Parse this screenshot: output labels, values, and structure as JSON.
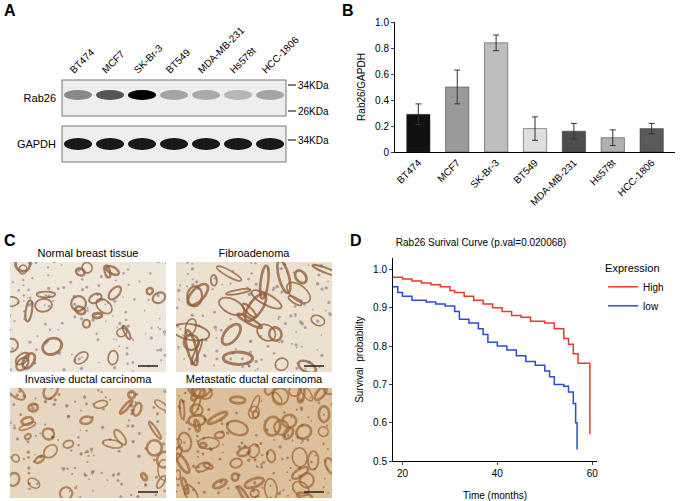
{
  "western_blot": {
    "panel": "A",
    "lanes": [
      "BT474",
      "MCF7",
      "SK-Br-3",
      "BT549",
      "MDA-MB-231",
      "Hs578t",
      "HCC-1806"
    ],
    "rows": [
      {
        "label": "Rab26",
        "markers": [
          "34KDa",
          "26KDa"
        ]
      },
      {
        "label": "GAPDH",
        "markers": [
          "34KDa"
        ]
      }
    ]
  },
  "chart_data": [
    {
      "panel": "B",
      "type": "bar",
      "categories": [
        "BT474",
        "MCF7",
        "SK-Br-3",
        "BT549",
        "MDA-MB-231",
        "Hs578t",
        "HCC-1806"
      ],
      "values": [
        0.29,
        0.5,
        0.84,
        0.18,
        0.16,
        0.11,
        0.18
      ],
      "errors": [
        0.08,
        0.13,
        0.06,
        0.09,
        0.06,
        0.06,
        0.04
      ],
      "colors": [
        "#111111",
        "#9a9a9a",
        "#bdbdbd",
        "#dedede",
        "#4d4d4d",
        "#b0b0b0",
        "#5a5a5a"
      ],
      "ylabel": "Rab26/GAPDH",
      "ylim": [
        0,
        1
      ],
      "yticks": [
        0,
        0.2,
        0.4,
        0.6,
        0.8,
        {
          "value": 1,
          "label": "1.0"
        }
      ],
      "grid": false
    },
    {
      "panel": "D",
      "type": "line",
      "title": "Rab26 Surival Curve (p.val=0.020068)",
      "xlabel": "Time (months)",
      "ylabel": "Survival  probability",
      "legend_title": "Expression",
      "legend": "right",
      "series": [
        {
          "name": "High",
          "color": "#e8392d",
          "x": [
            18,
            20,
            22,
            24,
            26,
            28,
            30,
            31,
            33,
            35,
            37,
            39,
            41,
            43,
            45,
            47,
            50,
            52,
            54,
            55,
            56,
            57,
            59.5,
            59.5
          ],
          "values": [
            0.98,
            0.975,
            0.97,
            0.965,
            0.96,
            0.955,
            0.945,
            0.94,
            0.93,
            0.92,
            0.91,
            0.9,
            0.89,
            0.88,
            0.875,
            0.865,
            0.86,
            0.845,
            0.82,
            0.805,
            0.78,
            0.755,
            0.755,
            0.57
          ]
        },
        {
          "name": "low",
          "color": "#2f4bd2",
          "x": [
            18,
            19,
            20,
            22,
            25,
            27,
            29,
            31,
            32,
            34,
            36,
            37,
            38,
            40,
            42,
            44,
            46,
            48,
            50,
            51,
            52,
            54,
            55,
            56,
            56.5,
            56.8
          ],
          "values": [
            0.955,
            0.94,
            0.93,
            0.92,
            0.915,
            0.91,
            0.905,
            0.89,
            0.87,
            0.86,
            0.845,
            0.83,
            0.81,
            0.8,
            0.79,
            0.775,
            0.76,
            0.75,
            0.735,
            0.72,
            0.7,
            0.695,
            0.68,
            0.65,
            0.6,
            0.53
          ]
        }
      ],
      "xlim": [
        18,
        61
      ],
      "xticks": [
        20,
        40,
        60
      ],
      "ylim": [
        0.5,
        1.03
      ],
      "yticks": [
        0.5,
        0.6,
        0.7,
        0.8,
        0.9,
        {
          "value": 1,
          "label": "1.0"
        }
      ],
      "grid": false
    }
  ],
  "ihc": {
    "panel": "C",
    "images": [
      "Normal breast tissue",
      "Fibroadenoma",
      "Invasive ductal carcinoma",
      "Metastatic ductal carcinoma"
    ]
  }
}
